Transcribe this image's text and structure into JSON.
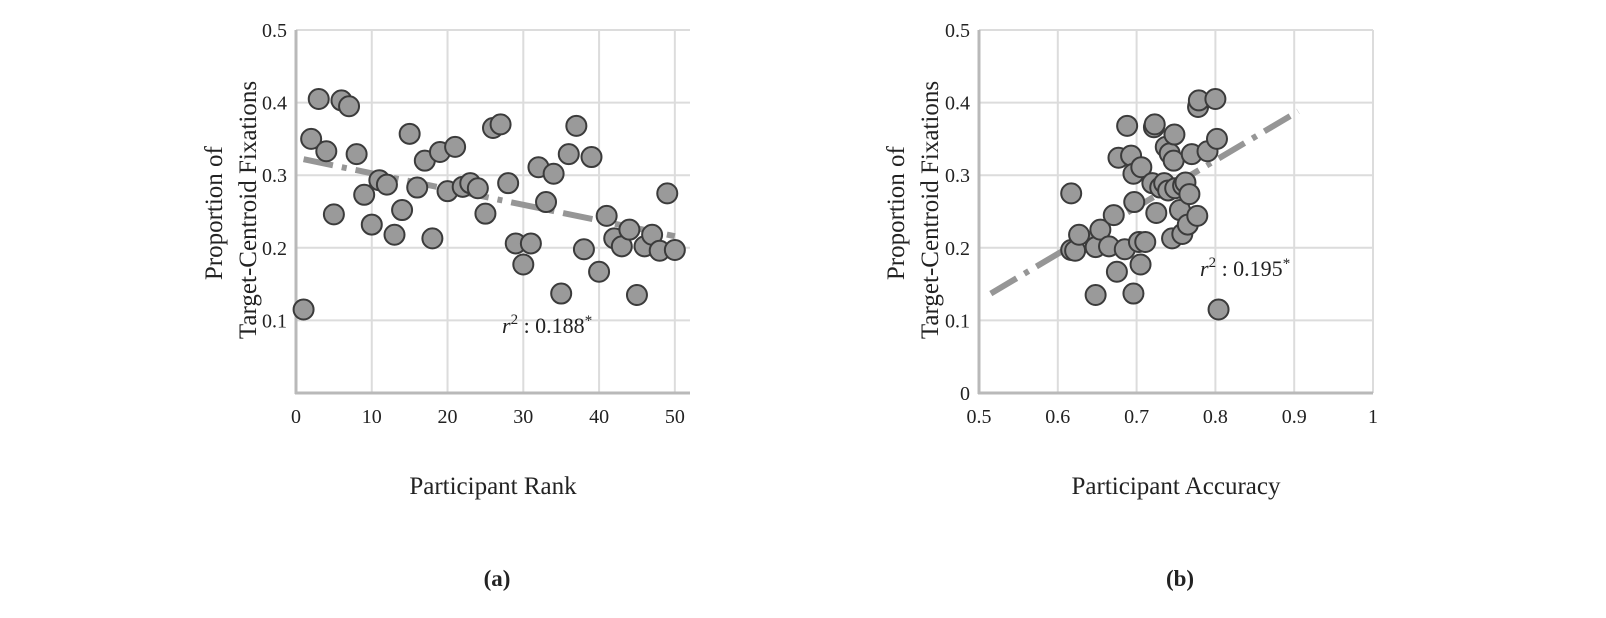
{
  "chart_data": [
    {
      "type": "scatter",
      "caption": "(a)",
      "xlabel": "Participant Rank",
      "ylabel": [
        "Proportion of",
        "Target-Centroid Fixations"
      ],
      "xlim": [
        0,
        52
      ],
      "ylim": [
        0,
        0.5
      ],
      "xticks": [
        {
          "value": 0,
          "label": "0"
        },
        {
          "value": 10,
          "label": "10"
        },
        {
          "value": 20,
          "label": "20"
        },
        {
          "value": 30,
          "label": "30"
        },
        {
          "value": 40,
          "label": "40"
        },
        {
          "value": 50,
          "label": "50"
        }
      ],
      "yticks": [
        {
          "value": 0.1,
          "label": "0.1"
        },
        {
          "value": 0.2,
          "label": "0.2"
        },
        {
          "value": 0.3,
          "label": "0.3"
        },
        {
          "value": 0.4,
          "label": "0.4"
        },
        {
          "value": 0.5,
          "label": "0.5"
        }
      ],
      "grid": true,
      "points": [
        [
          1,
          0.115
        ],
        [
          2,
          0.35
        ],
        [
          3,
          0.405
        ],
        [
          4,
          0.333
        ],
        [
          5,
          0.246
        ],
        [
          6,
          0.403
        ],
        [
          7,
          0.395
        ],
        [
          8,
          0.329
        ],
        [
          9,
          0.273
        ],
        [
          10,
          0.232
        ],
        [
          11,
          0.293
        ],
        [
          12,
          0.287
        ],
        [
          13,
          0.218
        ],
        [
          14,
          0.252
        ],
        [
          15,
          0.357
        ],
        [
          16,
          0.283
        ],
        [
          17,
          0.32
        ],
        [
          18,
          0.213
        ],
        [
          19,
          0.332
        ],
        [
          20,
          0.278
        ],
        [
          21,
          0.339
        ],
        [
          22,
          0.284
        ],
        [
          23,
          0.289
        ],
        [
          24,
          0.282
        ],
        [
          25,
          0.247
        ],
        [
          26,
          0.365
        ],
        [
          27,
          0.37
        ],
        [
          28,
          0.289
        ],
        [
          29,
          0.206
        ],
        [
          30,
          0.177
        ],
        [
          31,
          0.206
        ],
        [
          32,
          0.311
        ],
        [
          33,
          0.263
        ],
        [
          34,
          0.302
        ],
        [
          35,
          0.137
        ],
        [
          36,
          0.329
        ],
        [
          37,
          0.368
        ],
        [
          38,
          0.198
        ],
        [
          39,
          0.325
        ],
        [
          40,
          0.167
        ],
        [
          41,
          0.244
        ],
        [
          42,
          0.213
        ],
        [
          43,
          0.202
        ],
        [
          44,
          0.225
        ],
        [
          45,
          0.135
        ],
        [
          46,
          0.202
        ],
        [
          47,
          0.218
        ],
        [
          48,
          0.196
        ],
        [
          49,
          0.275
        ],
        [
          50,
          0.197
        ]
      ],
      "trendline": [
        [
          1,
          0.322
        ],
        [
          50,
          0.216
        ]
      ],
      "annotation": {
        "variable": "r",
        "exponent": "2",
        "text": " : 0.188",
        "suffix": "*"
      }
    },
    {
      "type": "scatter",
      "caption": "(b)",
      "xlabel": "Participant Accuracy",
      "ylabel": [
        "Proportion of",
        "Target-Centroid Fixations"
      ],
      "xlim": [
        0.5,
        1
      ],
      "ylim": [
        0,
        0.5
      ],
      "xticks": [
        {
          "value": 0.5,
          "label": "0.5"
        },
        {
          "value": 0.6,
          "label": "0.6"
        },
        {
          "value": 0.7,
          "label": "0.7"
        },
        {
          "value": 0.8,
          "label": "0.8"
        },
        {
          "value": 0.9,
          "label": "0.9"
        },
        {
          "value": 1,
          "label": "1"
        }
      ],
      "yticks": [
        {
          "value": 0,
          "label": "0"
        },
        {
          "value": 0.1,
          "label": "0.1"
        },
        {
          "value": 0.2,
          "label": "0.2"
        },
        {
          "value": 0.3,
          "label": "0.3"
        },
        {
          "value": 0.4,
          "label": "0.4"
        },
        {
          "value": 0.5,
          "label": "0.5"
        }
      ],
      "grid": true,
      "points": [
        [
          0.617,
          0.275
        ],
        [
          0.617,
          0.197
        ],
        [
          0.622,
          0.196
        ],
        [
          0.627,
          0.218
        ],
        [
          0.648,
          0.135
        ],
        [
          0.648,
          0.201
        ],
        [
          0.654,
          0.225
        ],
        [
          0.665,
          0.202
        ],
        [
          0.671,
          0.245
        ],
        [
          0.675,
          0.167
        ],
        [
          0.677,
          0.324
        ],
        [
          0.685,
          0.198
        ],
        [
          0.688,
          0.368
        ],
        [
          0.693,
          0.327
        ],
        [
          0.696,
          0.302
        ],
        [
          0.696,
          0.137
        ],
        [
          0.697,
          0.263
        ],
        [
          0.703,
          0.208
        ],
        [
          0.705,
          0.177
        ],
        [
          0.706,
          0.311
        ],
        [
          0.711,
          0.208
        ],
        [
          0.72,
          0.289
        ],
        [
          0.722,
          0.366
        ],
        [
          0.723,
          0.37
        ],
        [
          0.725,
          0.248
        ],
        [
          0.73,
          0.283
        ],
        [
          0.735,
          0.289
        ],
        [
          0.737,
          0.339
        ],
        [
          0.74,
          0.279
        ],
        [
          0.742,
          0.33
        ],
        [
          0.745,
          0.213
        ],
        [
          0.747,
          0.32
        ],
        [
          0.748,
          0.356
        ],
        [
          0.749,
          0.282
        ],
        [
          0.755,
          0.252
        ],
        [
          0.758,
          0.219
        ],
        [
          0.759,
          0.286
        ],
        [
          0.762,
          0.29
        ],
        [
          0.765,
          0.232
        ],
        [
          0.767,
          0.274
        ],
        [
          0.77,
          0.329
        ],
        [
          0.777,
          0.244
        ],
        [
          0.778,
          0.394
        ],
        [
          0.779,
          0.403
        ],
        [
          0.79,
          0.333
        ],
        [
          0.8,
          0.405
        ],
        [
          0.802,
          0.35
        ],
        [
          0.804,
          0.115
        ]
      ],
      "trendline": [
        [
          0.515,
          0.137
        ],
        [
          0.905,
          0.388
        ]
      ],
      "annotation": {
        "variable": "r",
        "exponent": "2",
        "text": " : 0.195",
        "suffix": "*"
      }
    }
  ]
}
